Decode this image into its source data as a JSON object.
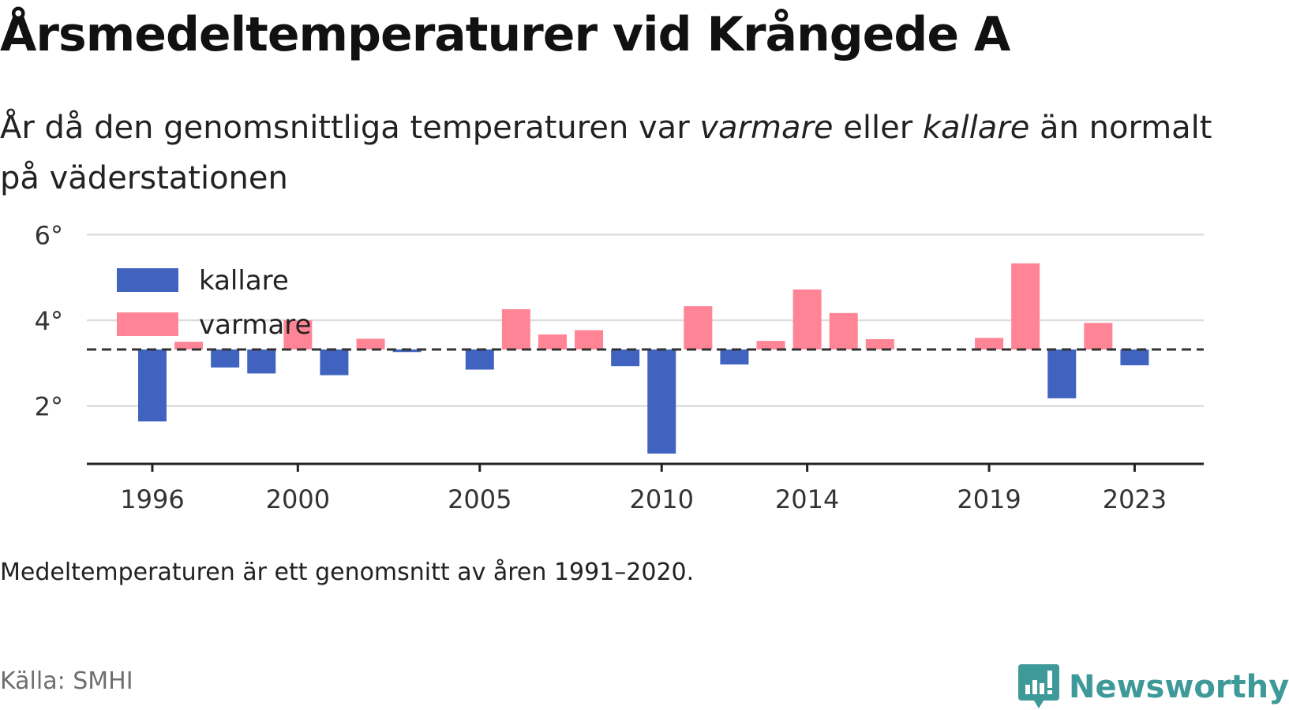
{
  "title": "Årsmedeltemperaturer vid Krångede A",
  "subtitle": {
    "part1": "År då den genomsnittliga temperaturen var ",
    "warm_word": "varmare",
    "part2": " eller ",
    "cold_word": "kallare",
    "part3": " än normalt på väderstationen"
  },
  "note": "Medeltemperaturen är ett genomsnitt av åren 1991–2020.",
  "source": "Källa: SMHI",
  "logo": {
    "text": "Newsworthy",
    "color": "#3e9a98"
  },
  "colors": {
    "cold": "#4063c0",
    "warm": "#ff8596",
    "baseline": "#333333",
    "grid": "#dddddd",
    "axis": "#222222"
  },
  "chart_data": {
    "type": "bar",
    "title": "Årsmedeltemperaturer vid Krångede A",
    "baseline": 3.32,
    "ylim": [
      0.65,
      6.1
    ],
    "yticks": [
      2,
      4,
      6
    ],
    "ytick_labels": [
      "2°",
      "4°",
      "6°"
    ],
    "xticks": [
      1996,
      2000,
      2005,
      2010,
      2014,
      2019,
      2023
    ],
    "xlim": [
      1994.2,
      2024.9
    ],
    "legend": {
      "placement": "top-left",
      "items": [
        {
          "label": "kallare",
          "key": "cold"
        },
        {
          "label": "varmare",
          "key": "warm"
        }
      ]
    },
    "grid": true,
    "years": [
      1996,
      1997,
      1998,
      1999,
      2000,
      2001,
      2002,
      2003,
      2004,
      2005,
      2006,
      2007,
      2008,
      2009,
      2010,
      2011,
      2012,
      2013,
      2014,
      2015,
      2016,
      2017,
      2018,
      2019,
      2020,
      2021,
      2022,
      2023
    ],
    "values": [
      1.64,
      3.5,
      2.9,
      2.76,
      4.0,
      2.72,
      3.57,
      3.26,
      3.32,
      2.85,
      4.26,
      3.67,
      3.77,
      2.93,
      0.89,
      4.33,
      2.97,
      3.52,
      4.72,
      4.17,
      3.56,
      3.32,
      3.32,
      3.59,
      5.33,
      2.18,
      3.94,
      2.95
    ]
  }
}
